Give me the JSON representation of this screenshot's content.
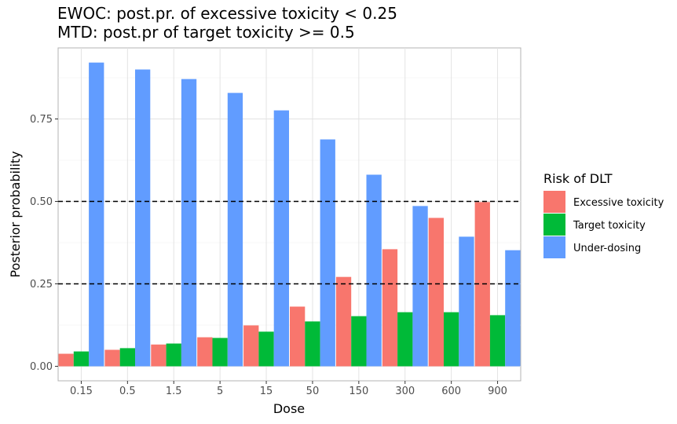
{
  "chart_data": {
    "type": "bar",
    "title": "EWOC: post.pr. of excessive toxicity < 0.25",
    "subtitle": "MTD: post.pr of target toxicity >= 0.5",
    "xlabel": "Dose",
    "ylabel": "Posterior probability",
    "ylim": [
      -0.04,
      0.97
    ],
    "yticks": [
      0,
      0.25,
      0.5,
      0.75
    ],
    "ytick_labels": [
      "0.00",
      "0.25",
      "0.50",
      "0.75"
    ],
    "grid": true,
    "categories": [
      "0.15",
      "0.5",
      "1.5",
      "5",
      "15",
      "50",
      "150",
      "300",
      "600",
      "900"
    ],
    "series": [
      {
        "name": "Excessive toxicity",
        "color": "#F8766D",
        "values": [
          0.038,
          0.05,
          0.066,
          0.088,
          0.124,
          0.181,
          0.271,
          0.355,
          0.45,
          0.498
        ]
      },
      {
        "name": "Target toxicity",
        "color": "#00BA38",
        "values": [
          0.045,
          0.055,
          0.069,
          0.086,
          0.105,
          0.136,
          0.152,
          0.164,
          0.164,
          0.155
        ]
      },
      {
        "name": "Under-dosing",
        "color": "#619CFF",
        "values": [
          0.921,
          0.9,
          0.871,
          0.829,
          0.776,
          0.688,
          0.581,
          0.486,
          0.393,
          0.352
        ]
      }
    ],
    "hlines": [
      0.25,
      0.5
    ],
    "legend": {
      "title": "Risk of DLT",
      "position": "right"
    }
  }
}
